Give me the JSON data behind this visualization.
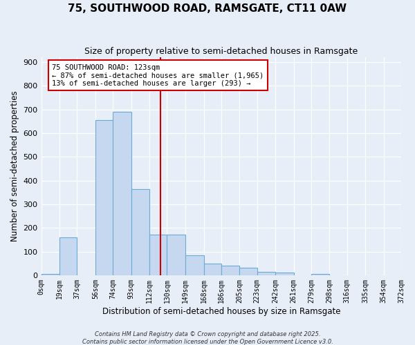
{
  "title": "75, SOUTHWOOD ROAD, RAMSGATE, CT11 0AW",
  "subtitle": "Size of property relative to semi-detached houses in Ramsgate",
  "xlabel": "Distribution of semi-detached houses by size in Ramsgate",
  "ylabel": "Number of semi-detached properties",
  "bin_edges": [
    0,
    19,
    37,
    56,
    74,
    93,
    112,
    130,
    149,
    168,
    186,
    205,
    223,
    242,
    261,
    279,
    298,
    316,
    335,
    354,
    372
  ],
  "bar_heights": [
    5,
    160,
    0,
    655,
    690,
    365,
    170,
    170,
    85,
    50,
    40,
    32,
    15,
    12,
    0,
    5,
    0,
    0,
    0,
    0
  ],
  "bar_color": "#c6d8f0",
  "bar_edge_color": "#6aaad4",
  "vline_x": 123,
  "vline_color": "#cc0000",
  "annotation_title": "75 SOUTHWOOD ROAD: 123sqm",
  "annotation_line1": "← 87% of semi-detached houses are smaller (1,965)",
  "annotation_line2": "13% of semi-detached houses are larger (293) →",
  "annotation_box_color": "#ffffff",
  "annotation_box_edge": "#cc0000",
  "ylim": [
    0,
    920
  ],
  "yticks": [
    0,
    100,
    200,
    300,
    400,
    500,
    600,
    700,
    800,
    900
  ],
  "background_color": "#e8eef8",
  "grid_color": "#ffffff",
  "footer1": "Contains HM Land Registry data © Crown copyright and database right 2025.",
  "footer2": "Contains public sector information licensed under the Open Government Licence v3.0."
}
